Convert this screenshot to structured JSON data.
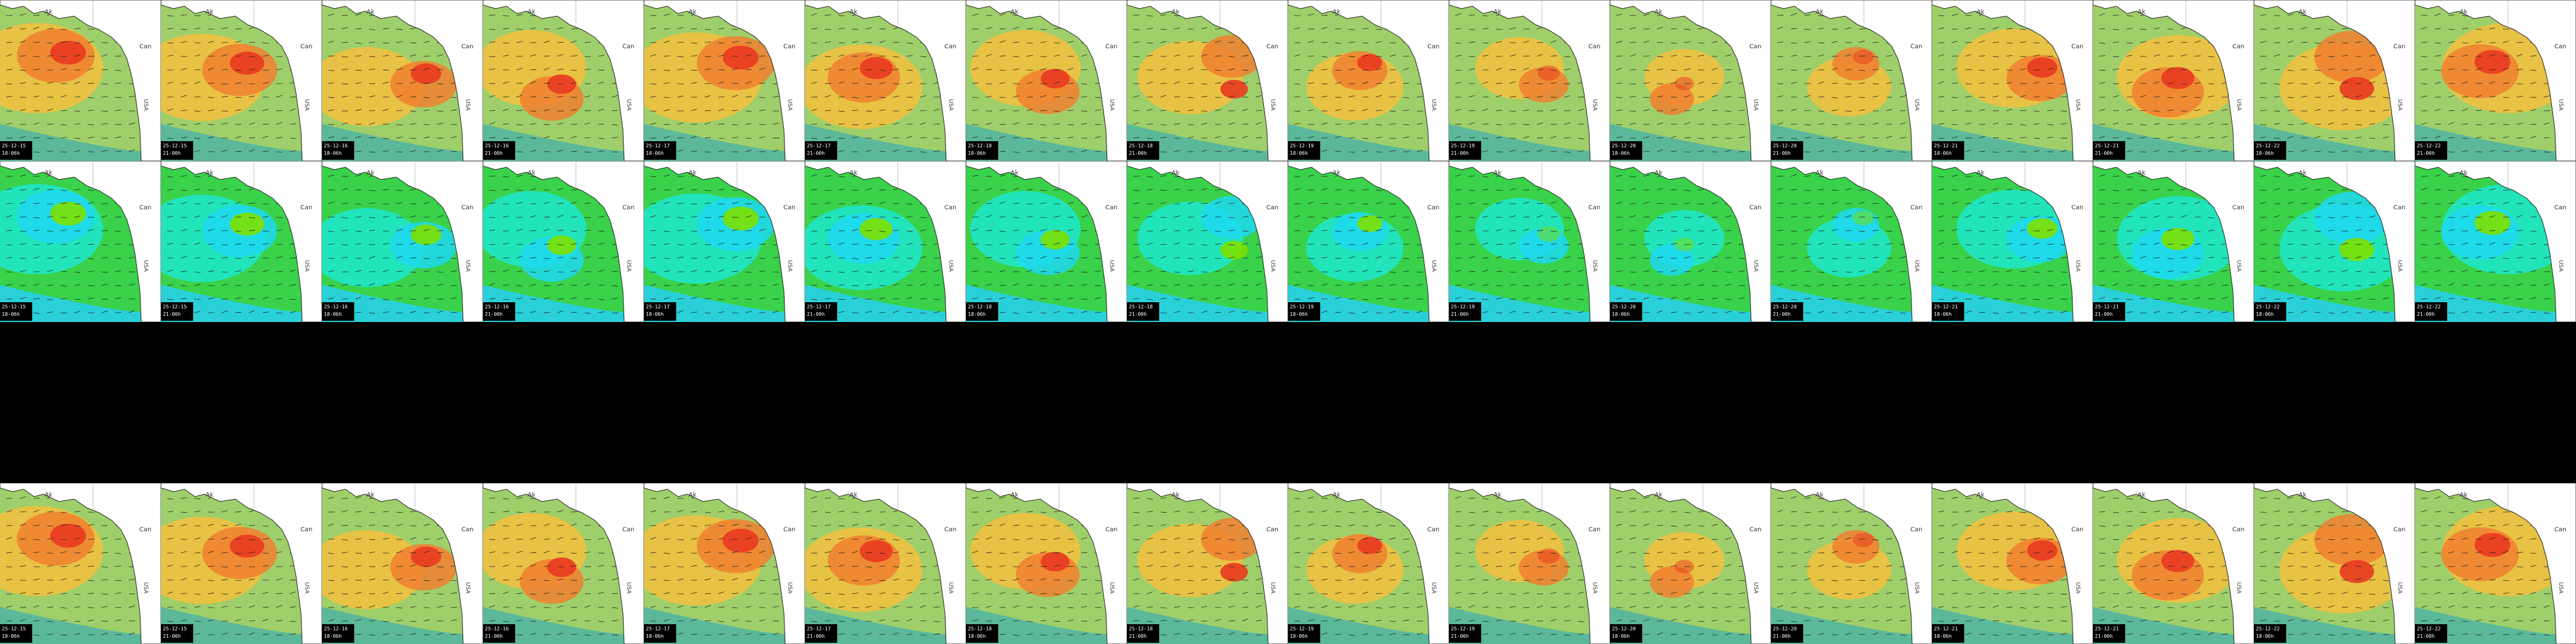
{
  "labels": {
    "ak": "Ak",
    "can": "Can",
    "usa": "USA"
  },
  "rows": [
    {
      "palette": "warm",
      "stamps": [
        [
          "25-12-15",
          "18-06h"
        ],
        [
          "25-12-15",
          "21-00h"
        ],
        [
          "25-12-16",
          "18-06h"
        ],
        [
          "25-12-16",
          "21-00h"
        ],
        [
          "25-12-17",
          "18-06h"
        ],
        [
          "25-12-17",
          "21-00h"
        ],
        [
          "25-12-18",
          "18-06h"
        ],
        [
          "25-12-18",
          "21-00h"
        ],
        [
          "25-12-19",
          "18-06h"
        ],
        [
          "25-12-19",
          "21-00h"
        ],
        [
          "25-12-20",
          "18-06h"
        ],
        [
          "25-12-20",
          "21-00h"
        ],
        [
          "25-12-21",
          "18-06h"
        ],
        [
          "25-12-21",
          "21-00h"
        ],
        [
          "25-12-22",
          "18-06h"
        ],
        [
          "25-12-22",
          "21-00h"
        ]
      ]
    },
    {
      "palette": "cool",
      "stamps": [
        [
          "25-12-15",
          "18-06h"
        ],
        [
          "25-12-15",
          "21-00h"
        ],
        [
          "25-12-16",
          "18-06h"
        ],
        [
          "25-12-16",
          "21-00h"
        ],
        [
          "25-12-17",
          "18-06h"
        ],
        [
          "25-12-17",
          "21-00h"
        ],
        [
          "25-12-18",
          "18-06h"
        ],
        [
          "25-12-18",
          "21-00h"
        ],
        [
          "25-12-19",
          "18-06h"
        ],
        [
          "25-12-19",
          "21-00h"
        ],
        [
          "25-12-20",
          "18-06h"
        ],
        [
          "25-12-20",
          "21-00h"
        ],
        [
          "25-12-21",
          "18-06h"
        ],
        [
          "25-12-21",
          "21-00h"
        ],
        [
          "25-12-22",
          "18-06h"
        ],
        [
          "25-12-22",
          "21-00h"
        ]
      ]
    },
    {
      "palette": "blank",
      "stamps": []
    },
    {
      "palette": "warm",
      "stamps": [
        [
          "25-12-15",
          "18-06h"
        ],
        [
          "25-12-15",
          "21-00h"
        ],
        [
          "25-12-16",
          "18-06h"
        ],
        [
          "25-12-16",
          "21-00h"
        ],
        [
          "25-12-17",
          "18-06h"
        ],
        [
          "25-12-17",
          "21-00h"
        ],
        [
          "25-12-18",
          "18-06h"
        ],
        [
          "25-12-18",
          "21-00h"
        ],
        [
          "25-12-19",
          "18-06h"
        ],
        [
          "25-12-19",
          "21-00h"
        ],
        [
          "25-12-20",
          "18-06h"
        ],
        [
          "25-12-20",
          "21-00h"
        ],
        [
          "25-12-21",
          "18-06h"
        ],
        [
          "25-12-21",
          "21-00h"
        ],
        [
          "25-12-22",
          "18-06h"
        ],
        [
          "25-12-22",
          "21-00h"
        ]
      ]
    }
  ],
  "palettes": {
    "warm": {
      "base": "#9fcf6a",
      "mid": "#f0c040",
      "hot": "#f08030",
      "peak": "#e83a20",
      "sea": "#5cb89a",
      "land": "#ffffff",
      "coast": "#222222"
    },
    "cool": {
      "base": "#39d24a",
      "mid": "#20e6c8",
      "hot": "#1fd8f0",
      "peak": "#7de000",
      "sea": "#2ad0d8",
      "land": "#ffffff",
      "coast": "#222222"
    }
  },
  "intensity": [
    0.95,
    0.9,
    0.75,
    0.7,
    0.95,
    0.85,
    0.7,
    0.65,
    0.55,
    0.45,
    0.35,
    0.4,
    0.75,
    0.85,
    0.9,
    0.95
  ]
}
